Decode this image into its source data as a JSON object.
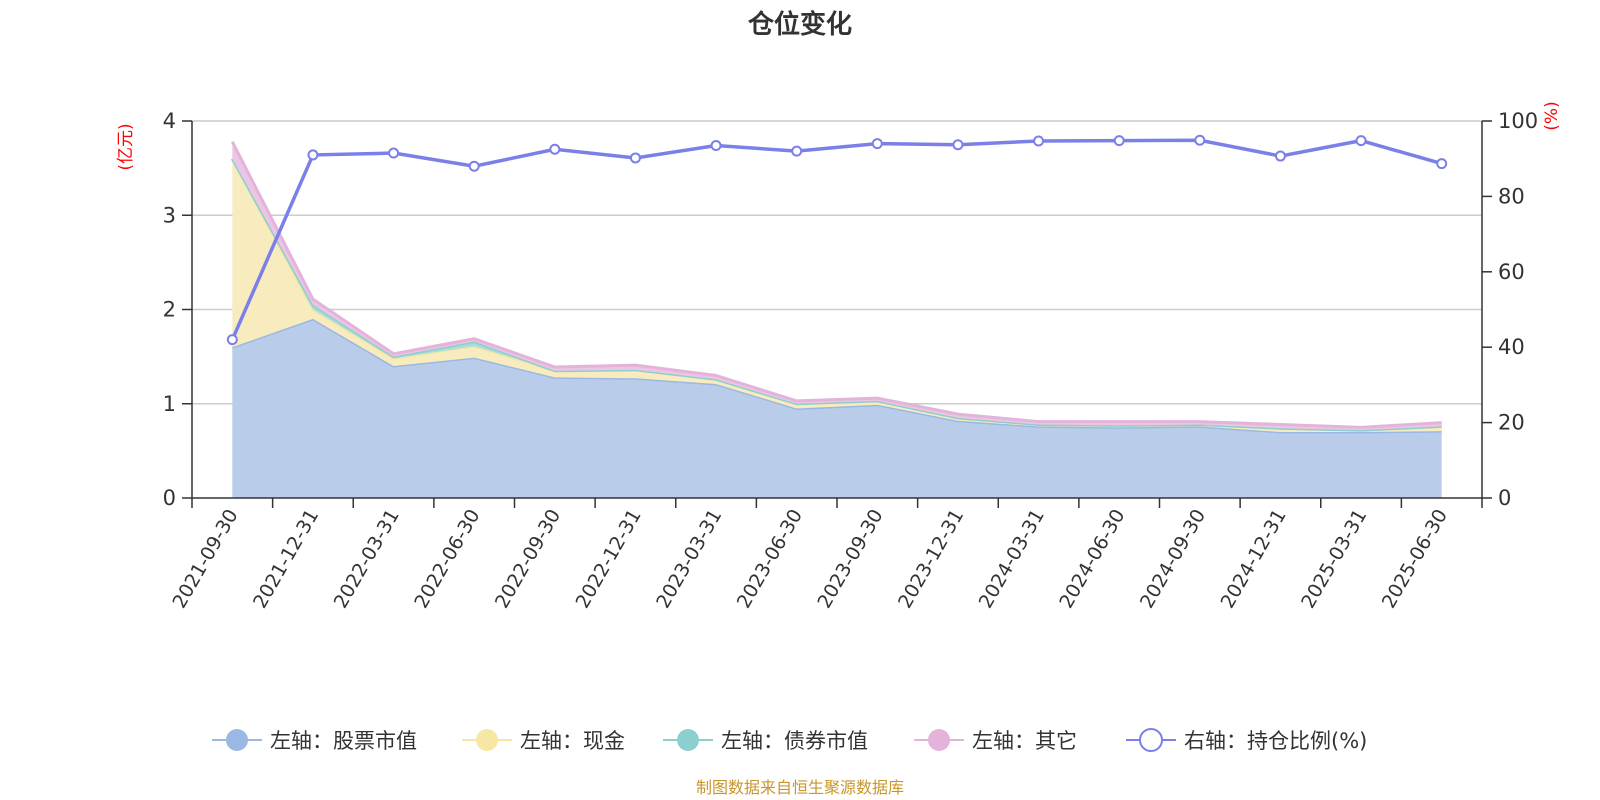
{
  "chart_data": {
    "type": "area",
    "title": "仓位变化",
    "left_unit": "(亿元)",
    "right_unit": "(%)",
    "categories": [
      "2021-09-30",
      "2021-12-31",
      "2022-03-31",
      "2022-06-30",
      "2022-09-30",
      "2022-12-31",
      "2023-03-31",
      "2023-06-30",
      "2023-09-30",
      "2023-12-31",
      "2024-03-31",
      "2024-06-30",
      "2024-09-30",
      "2024-12-31",
      "2025-03-31",
      "2025-06-30"
    ],
    "left_axis": {
      "min": 0,
      "max": 4,
      "ticks": [
        "0",
        "1",
        "2",
        "3",
        "4"
      ]
    },
    "right_axis": {
      "min": 0,
      "max": 100,
      "ticks": [
        "0",
        "20",
        "40",
        "60",
        "80",
        "100"
      ]
    },
    "series": [
      {
        "name": "左轴：股票市值",
        "color": "#9bb8e2",
        "fill": "#b9cdea",
        "axis": "left",
        "stacked": true,
        "values": [
          1.6,
          1.9,
          1.4,
          1.49,
          1.28,
          1.27,
          1.21,
          0.95,
          0.99,
          0.82,
          0.76,
          0.75,
          0.76,
          0.7,
          0.7,
          0.71
        ]
      },
      {
        "name": "左轴：现金",
        "color": "#f6e7a4",
        "fill": "#f8ecbe",
        "axis": "left",
        "stacked": true,
        "values": [
          2.0,
          0.1,
          0.08,
          0.12,
          0.07,
          0.09,
          0.05,
          0.05,
          0.04,
          0.03,
          0.02,
          0.02,
          0.02,
          0.04,
          0.02,
          0.05
        ]
      },
      {
        "name": "左轴：债券市值",
        "color": "#8dcfcf",
        "fill": "#a9dcdc",
        "axis": "left",
        "stacked": true,
        "values": [
          0.0,
          0.05,
          0.02,
          0.05,
          0.0,
          0.0,
          0.0,
          0.0,
          0.0,
          0.0,
          0.0,
          0.0,
          0.0,
          0.0,
          0.0,
          0.0
        ]
      },
      {
        "name": "左轴：其它",
        "color": "#e4b3da",
        "fill": "#ebc6e4",
        "axis": "left",
        "stacked": true,
        "values": [
          0.18,
          0.06,
          0.03,
          0.03,
          0.04,
          0.05,
          0.04,
          0.03,
          0.03,
          0.04,
          0.03,
          0.04,
          0.03,
          0.04,
          0.03,
          0.04
        ]
      },
      {
        "name": "右轴：持仓比例(%)",
        "color": "#7b7fe8",
        "axis": "right",
        "stacked": false,
        "values": [
          42,
          91,
          91.5,
          88,
          92.5,
          90.2,
          93.5,
          92,
          94,
          93.7,
          94.7,
          94.8,
          94.9,
          90.7,
          94.8,
          88.7
        ]
      }
    ],
    "legend_position": "bottom",
    "grid": true,
    "source": "制图数据来自恒生聚源数据库"
  }
}
